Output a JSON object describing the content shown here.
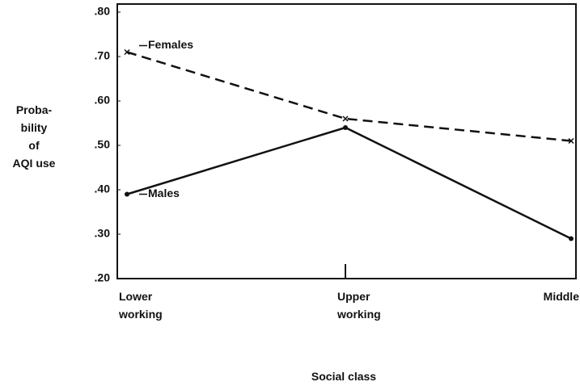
{
  "chart_data": {
    "type": "line",
    "x_label": "Social class",
    "y_label": "Proba-\nbility\nof\nAQI use",
    "categories": [
      "Lower\nworking",
      "Upper\nworking",
      "Middle"
    ],
    "series": [
      {
        "name": "Females",
        "color": "#111111",
        "values": [
          0.71,
          0.56,
          0.51
        ]
      },
      {
        "name": "Males",
        "color": "#111111",
        "values": [
          0.39,
          0.54,
          0.29
        ]
      }
    ],
    "ylim": [
      0.2,
      0.8
    ],
    "yticks": [
      {
        "value": 0.2,
        "label": ".20"
      },
      {
        "value": 0.3,
        "label": ".30"
      },
      {
        "value": 0.4,
        "label": ".40"
      },
      {
        "value": 0.5,
        "label": ".50"
      },
      {
        "value": 0.6,
        "label": ".60"
      },
      {
        "value": 0.7,
        "label": ".70"
      },
      {
        "value": 0.8,
        "label": ".80"
      }
    ]
  }
}
